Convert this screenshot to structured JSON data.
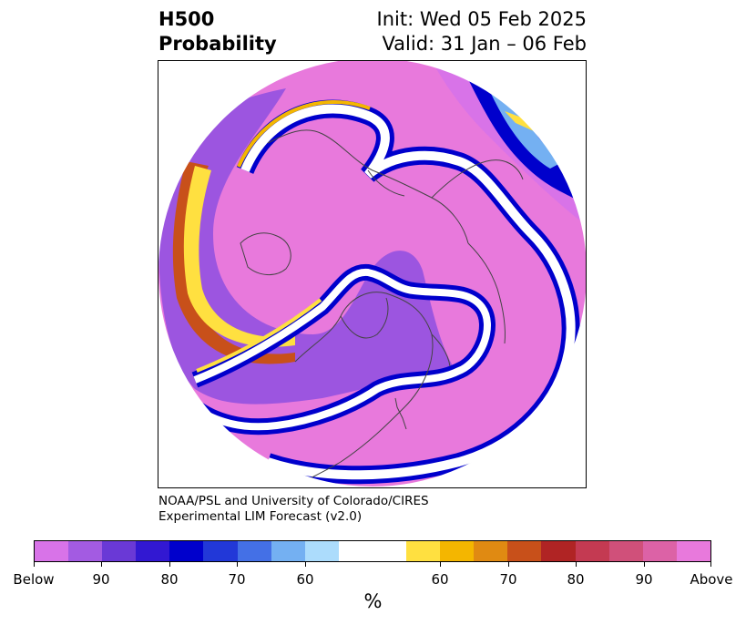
{
  "title": {
    "left_line1": "H500",
    "left_line2": "Probability",
    "right_line1": "Init: Wed 05 Feb 2025",
    "right_line2": "Valid: 31 Jan – 06 Feb"
  },
  "credit": {
    "line1": "NOAA/PSL and University of Colorado/CIRES",
    "line2": "Experimental LIM Forecast (v2.0)"
  },
  "map": {
    "projection": "north-polar-stereographic",
    "ocean_color": "#e879dc",
    "coastline_color": "#444444",
    "regions": "above-normal over North America and Arctic, below-normal bands curving around Pacific and Atlantic"
  },
  "colorbar": {
    "colors": [
      "#d873e8",
      "#a35be2",
      "#6a39d6",
      "#3218d2",
      "#0000cc",
      "#2238d8",
      "#4470e6",
      "#74b0f2",
      "#acdcfc",
      "#ffffff",
      "#ffe040",
      "#f4b600",
      "#e08a12",
      "#c8501a",
      "#b02424",
      "#c43a52",
      "#d0507a",
      "#dc62a6",
      "#e879dc"
    ],
    "tick_labels": [
      "Below",
      "90",
      "80",
      "70",
      "60",
      "60",
      "70",
      "80",
      "90",
      "Above"
    ],
    "unit_label": "%"
  }
}
